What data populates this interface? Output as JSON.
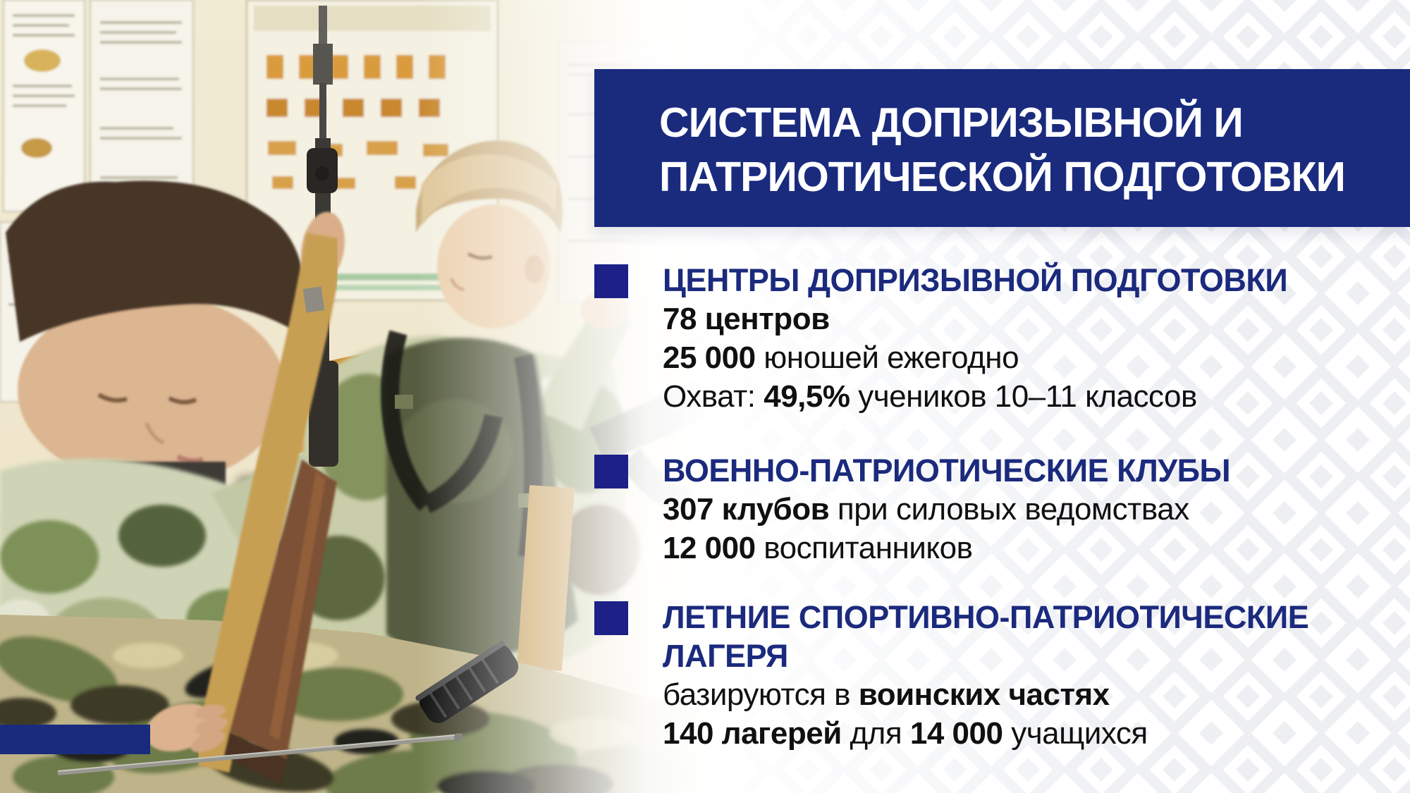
{
  "title": {
    "lines": [
      "СИСТЕМА ДОПРИЗЫВНОЙ И",
      "ПАТРИОТИЧЕСКОЙ ПОДГОТОВКИ"
    ]
  },
  "sections": [
    {
      "id": "centers",
      "heading_lines": [
        "ЦЕНТРЫ ДОПРИЗЫВНОЙ ПОДГОТОВКИ"
      ],
      "lines": [
        [
          {
            "t": "78 центров",
            "b": true
          }
        ],
        [
          {
            "t": "25 000",
            "b": true
          },
          {
            "t": " юношей ежегодно",
            "b": false
          }
        ],
        [
          {
            "t": "Охват: ",
            "b": false
          },
          {
            "t": "49,5%",
            "b": true
          },
          {
            "t": " учеников 10–11 классов",
            "b": false
          }
        ]
      ]
    },
    {
      "id": "clubs",
      "heading_lines": [
        "ВОЕННО-ПАТРИОТИЧЕСКИЕ КЛУБЫ"
      ],
      "lines": [
        [
          {
            "t": "307 клубов",
            "b": true
          },
          {
            "t": " при силовых ведомствах",
            "b": false
          }
        ],
        [
          {
            "t": "12 000",
            "b": true
          },
          {
            "t": " воспитанников",
            "b": false
          }
        ]
      ]
    },
    {
      "id": "camps",
      "heading_lines": [
        "ЛЕТНИЕ СПОРТИВНО-ПАТРИОТИЧЕСКИЕ",
        "ЛАГЕРЯ"
      ],
      "lines": [
        [
          {
            "t": "базируются в ",
            "b": false
          },
          {
            "t": "воинских частях",
            "b": true
          }
        ],
        [
          {
            "t": "140 лагерей",
            "b": true
          },
          {
            "t": " для ",
            "b": false
          },
          {
            "t": "14 000",
            "b": true
          },
          {
            "t": " учащихся",
            "b": false
          }
        ]
      ]
    }
  ],
  "photo": {
    "alt": "Два мальчика в камуфляже с винтовкой в классе допризывной подготовки"
  },
  "colors": {
    "banner_blue": "#1a2b7e",
    "bullet_blue": "#1b2187",
    "heading_blue": "#1b2a7d",
    "body_text": "#101010",
    "pattern_gray": "#edeff3",
    "accent_bar": "#1a2b7e"
  }
}
